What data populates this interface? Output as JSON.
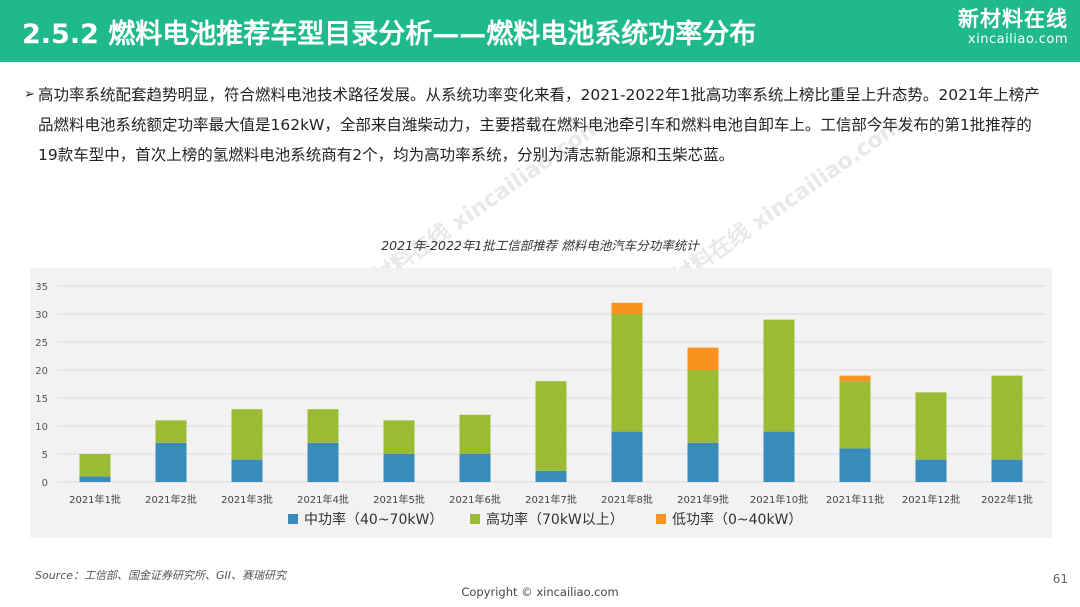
{
  "header": {
    "title": "2.5.2 燃料电池推荐车型目录分析——燃料电池系统功率分布",
    "logo_cn": "新材料在线",
    "logo_en": "xincailiao.com"
  },
  "intro": {
    "bullet": "➢",
    "text": "高功率系统配套趋势明显，符合燃料电池技术路径发展。从系统功率变化来看，2021-2022年1批高功率系统上榜比重呈上升态势。2021年上榜产品燃料电池系统额定功率最大值是162kW，全部来自潍柴动力，主要搭载在燃料电池牵引车和燃料电池自卸车上。工信部今年发布的第1批推荐的19款车型中，首次上榜的氢燃料电池系统商有2个，均为高功率系统，分别为清志新能源和玉柴芯蓝。"
  },
  "chart_data": {
    "type": "bar",
    "stacked": true,
    "title": "2021年-2022年1批工信部推荐 燃料电池汽车分功率统计",
    "categories": [
      "2021年1批",
      "2021年2批",
      "2021年3批",
      "2021年4批",
      "2021年5批",
      "2021年6批",
      "2021年7批",
      "2021年8批",
      "2021年9批",
      "2021年10批",
      "2021年11批",
      "2021年12批",
      "2022年1批"
    ],
    "series": [
      {
        "name": "中功率（40~70kW）",
        "color": "#3b8bba",
        "values": [
          1,
          7,
          4,
          7,
          5,
          5,
          2,
          9,
          7,
          9,
          6,
          4,
          4
        ]
      },
      {
        "name": "高功率（70kW以上）",
        "color": "#9bbb35",
        "values": [
          4,
          4,
          9,
          6,
          6,
          7,
          16,
          21,
          13,
          20,
          12,
          12,
          15
        ]
      },
      {
        "name": "低功率（0~40kW）",
        "color": "#f7931e",
        "values": [
          0,
          0,
          0,
          0,
          0,
          0,
          0,
          2,
          4,
          0,
          1,
          0,
          0
        ]
      }
    ],
    "yticks": [
      0,
      5,
      10,
      15,
      20,
      25,
      30,
      35
    ],
    "ylim": [
      0,
      35
    ],
    "grid": true,
    "legend_position": "bottom"
  },
  "watermarks": [
    "新材料在线",
    "xincailiao.com"
  ],
  "footer": {
    "source": "Source：工信部、国金证券研究所、GII、赛瑞研究",
    "copyright": "Copyright © xincailiao.com",
    "page": "61"
  }
}
